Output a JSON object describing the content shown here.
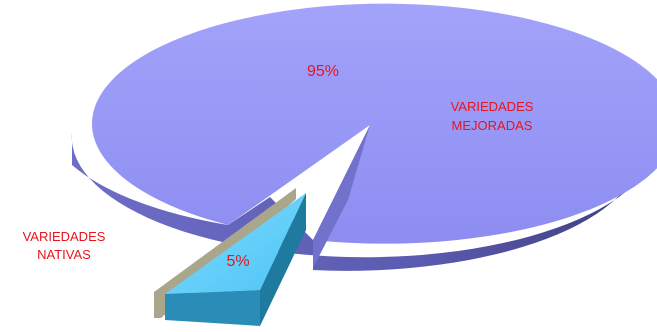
{
  "chart_data": {
    "type": "pie",
    "style": "3d-exploded",
    "title": "",
    "slices": [
      {
        "label_lines": [
          "VARIEDADES",
          "MEJORADAS"
        ],
        "value": 95,
        "value_label": "95%",
        "color": "#9696f7"
      },
      {
        "label_lines": [
          "VARIEDADES",
          "NATIVAS"
        ],
        "value": 5,
        "value_label": "5%",
        "color": "#5ecdfa"
      }
    ],
    "label_color": "#e8141e"
  }
}
